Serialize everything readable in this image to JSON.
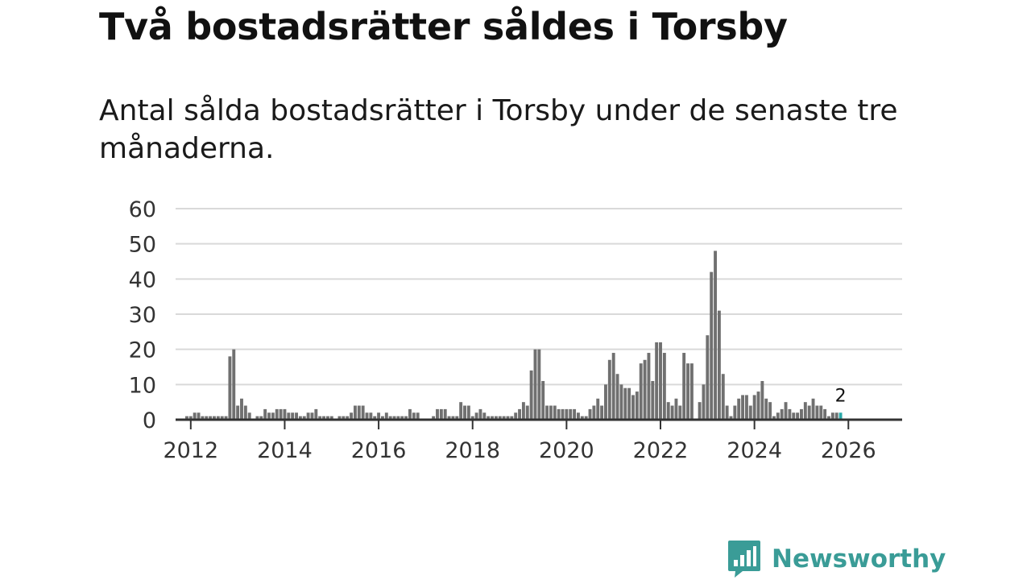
{
  "title": "Två bostadsrätter såldes i Torsby",
  "subtitle": "Antal sålda bostadsrätter i Torsby under de senaste tre månaderna.",
  "brand": {
    "name": "Newsworthy"
  },
  "colors": {
    "bar": "#707070",
    "highlight": "#2aa9a9",
    "grid": "#d9d9d9",
    "axis": "#333333",
    "brand": "#3a9c97"
  },
  "chart_data": {
    "type": "bar",
    "title": "Antal sålda bostadsrätter i Torsby",
    "xlabel": "",
    "ylabel": "",
    "ylim": [
      0,
      60
    ],
    "y_ticks": [
      "0",
      "10",
      "20",
      "30",
      "40",
      "50",
      "60"
    ],
    "x_ticks": [
      "2012",
      "2014",
      "2016",
      "2018",
      "2020",
      "2022",
      "2024",
      "2026"
    ],
    "start": "2011-12",
    "interval": "month",
    "grid": true,
    "highlight_last": true,
    "last_label": "2",
    "values": [
      1,
      1,
      2,
      2,
      1,
      1,
      1,
      1,
      1,
      1,
      1,
      18,
      20,
      4,
      6,
      4,
      2,
      0,
      1,
      1,
      3,
      2,
      2,
      3,
      3,
      3,
      2,
      2,
      2,
      1,
      1,
      2,
      2,
      3,
      1,
      1,
      1,
      1,
      0,
      1,
      1,
      1,
      2,
      4,
      4,
      4,
      2,
      2,
      1,
      2,
      1,
      2,
      1,
      1,
      1,
      1,
      1,
      3,
      2,
      2,
      0,
      0,
      0,
      1,
      3,
      3,
      3,
      1,
      1,
      1,
      5,
      4,
      4,
      1,
      2,
      3,
      2,
      1,
      1,
      1,
      1,
      1,
      1,
      1,
      2,
      3,
      5,
      4,
      14,
      20,
      20,
      11,
      4,
      4,
      4,
      3,
      3,
      3,
      3,
      3,
      2,
      1,
      1,
      3,
      4,
      6,
      4,
      10,
      17,
      19,
      13,
      10,
      9,
      9,
      7,
      8,
      16,
      17,
      19,
      11,
      22,
      22,
      19,
      5,
      4,
      6,
      4,
      19,
      16,
      16,
      0,
      5,
      10,
      24,
      42,
      48,
      31,
      13,
      4,
      1,
      4,
      6,
      7,
      7,
      4,
      7,
      8,
      11,
      6,
      5,
      1,
      2,
      3,
      5,
      3,
      2,
      2,
      3,
      5,
      4,
      6,
      4,
      4,
      3,
      1,
      2,
      2,
      2
    ]
  }
}
